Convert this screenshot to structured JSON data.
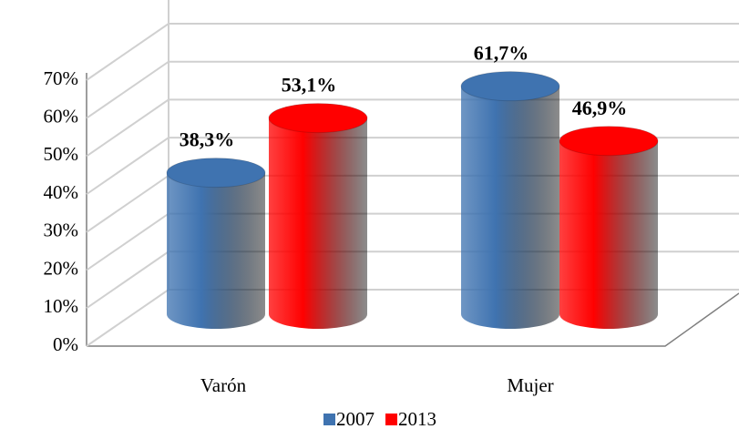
{
  "chart_data": {
    "type": "bar3d",
    "categories": [
      "Varón",
      "Mujer"
    ],
    "series": [
      {
        "name": "2007",
        "color": "#3f73b0",
        "values": [
          38.3,
          61.7
        ],
        "value_labels": [
          "38,3%",
          "61,7%"
        ]
      },
      {
        "name": "2013",
        "color": "#ff0000",
        "values": [
          53.1,
          46.9
        ],
        "value_labels": [
          "53,1%",
          "46,9%"
        ]
      }
    ],
    "ylim": [
      0,
      70
    ],
    "yticks": [
      {
        "value": 0,
        "label": "0%"
      },
      {
        "value": 10,
        "label": "10%"
      },
      {
        "value": 20,
        "label": "20%"
      },
      {
        "value": 30,
        "label": "30%"
      },
      {
        "value": 40,
        "label": "40%"
      },
      {
        "value": 50,
        "label": "50%"
      },
      {
        "value": 60,
        "label": "60%"
      },
      {
        "value": 70,
        "label": "70%"
      }
    ],
    "grid": true,
    "legend": "bottom"
  }
}
